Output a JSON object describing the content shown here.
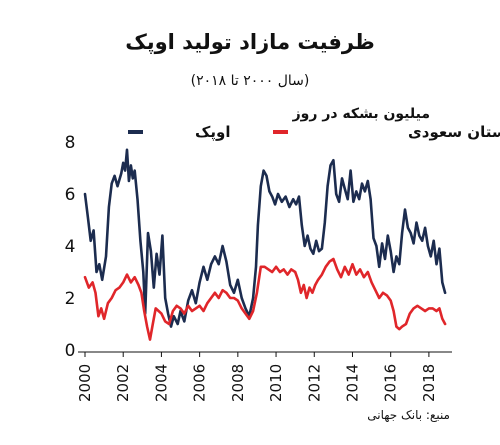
{
  "chart_data": {
    "type": "line",
    "title": "ظرفیت مازاد تولید اوپک",
    "subtitle": "(سال ۲۰۰۰ تا ۲۰۱۸)",
    "ylabel": "میلیون بشکه در روز",
    "xlabel": "",
    "source": "منبع: بانک جهانی",
    "ylim": [
      0,
      8
    ],
    "xlim": [
      2000,
      2019
    ],
    "yticks": [
      "0",
      "2",
      "4",
      "6",
      "8"
    ],
    "xticks": [
      "2000",
      "2002",
      "2004",
      "2006",
      "2008",
      "2010",
      "2012",
      "2014",
      "2016",
      "2018"
    ],
    "grid": false,
    "legend_placement": "top",
    "series": [
      {
        "name": "اوپک",
        "color": "#1c2c4f",
        "points": [
          [
            2000.0,
            6.0
          ],
          [
            2000.15,
            5.1
          ],
          [
            2000.3,
            4.2
          ],
          [
            2000.45,
            4.6
          ],
          [
            2000.6,
            3.0
          ],
          [
            2000.75,
            3.3
          ],
          [
            2000.9,
            2.7
          ],
          [
            2001.1,
            3.6
          ],
          [
            2001.25,
            5.5
          ],
          [
            2001.4,
            6.4
          ],
          [
            2001.55,
            6.7
          ],
          [
            2001.7,
            6.3
          ],
          [
            2001.9,
            6.8
          ],
          [
            2002.0,
            7.2
          ],
          [
            2002.1,
            6.9
          ],
          [
            2002.2,
            7.7
          ],
          [
            2002.3,
            6.5
          ],
          [
            2002.4,
            7.1
          ],
          [
            2002.5,
            6.6
          ],
          [
            2002.6,
            6.9
          ],
          [
            2002.75,
            5.8
          ],
          [
            2002.9,
            4.2
          ],
          [
            2003.05,
            3.0
          ],
          [
            2003.15,
            1.4
          ],
          [
            2003.3,
            4.5
          ],
          [
            2003.45,
            3.8
          ],
          [
            2003.6,
            2.4
          ],
          [
            2003.75,
            3.7
          ],
          [
            2003.9,
            2.9
          ],
          [
            2004.05,
            4.4
          ],
          [
            2004.2,
            2.0
          ],
          [
            2004.35,
            1.4
          ],
          [
            2004.5,
            0.9
          ],
          [
            2004.65,
            1.3
          ],
          [
            2004.85,
            1.0
          ],
          [
            2005.0,
            1.5
          ],
          [
            2005.2,
            1.1
          ],
          [
            2005.4,
            1.9
          ],
          [
            2005.6,
            2.3
          ],
          [
            2005.8,
            1.8
          ],
          [
            2006.0,
            2.6
          ],
          [
            2006.2,
            3.2
          ],
          [
            2006.4,
            2.7
          ],
          [
            2006.6,
            3.3
          ],
          [
            2006.8,
            3.6
          ],
          [
            2007.0,
            3.3
          ],
          [
            2007.2,
            4.0
          ],
          [
            2007.4,
            3.4
          ],
          [
            2007.6,
            2.5
          ],
          [
            2007.8,
            2.2
          ],
          [
            2008.0,
            2.7
          ],
          [
            2008.2,
            2.0
          ],
          [
            2008.4,
            1.6
          ],
          [
            2008.6,
            1.3
          ],
          [
            2008.8,
            2.0
          ],
          [
            2008.95,
            3.2
          ],
          [
            2009.05,
            4.8
          ],
          [
            2009.2,
            6.3
          ],
          [
            2009.35,
            6.9
          ],
          [
            2009.5,
            6.7
          ],
          [
            2009.65,
            6.1
          ],
          [
            2009.8,
            5.9
          ],
          [
            2009.95,
            5.6
          ],
          [
            2010.1,
            6.0
          ],
          [
            2010.3,
            5.7
          ],
          [
            2010.5,
            5.9
          ],
          [
            2010.7,
            5.5
          ],
          [
            2010.9,
            5.8
          ],
          [
            2011.05,
            5.6
          ],
          [
            2011.2,
            5.9
          ],
          [
            2011.35,
            4.8
          ],
          [
            2011.5,
            4.0
          ],
          [
            2011.65,
            4.4
          ],
          [
            2011.8,
            3.9
          ],
          [
            2011.95,
            3.7
          ],
          [
            2012.1,
            4.2
          ],
          [
            2012.25,
            3.8
          ],
          [
            2012.4,
            3.9
          ],
          [
            2012.55,
            4.9
          ],
          [
            2012.7,
            6.3
          ],
          [
            2012.85,
            7.1
          ],
          [
            2013.0,
            7.3
          ],
          [
            2013.15,
            6.0
          ],
          [
            2013.3,
            5.7
          ],
          [
            2013.45,
            6.6
          ],
          [
            2013.6,
            6.2
          ],
          [
            2013.75,
            5.8
          ],
          [
            2013.9,
            6.9
          ],
          [
            2014.05,
            5.7
          ],
          [
            2014.2,
            6.1
          ],
          [
            2014.35,
            5.8
          ],
          [
            2014.5,
            6.4
          ],
          [
            2014.65,
            6.1
          ],
          [
            2014.8,
            6.5
          ],
          [
            2014.95,
            5.8
          ],
          [
            2015.1,
            4.3
          ],
          [
            2015.25,
            4.0
          ],
          [
            2015.4,
            3.2
          ],
          [
            2015.55,
            4.1
          ],
          [
            2015.7,
            3.5
          ],
          [
            2015.85,
            4.4
          ],
          [
            2016.0,
            3.8
          ],
          [
            2016.15,
            3.0
          ],
          [
            2016.3,
            3.6
          ],
          [
            2016.45,
            3.3
          ],
          [
            2016.6,
            4.5
          ],
          [
            2016.75,
            5.4
          ],
          [
            2016.9,
            4.7
          ],
          [
            2017.05,
            4.5
          ],
          [
            2017.2,
            4.1
          ],
          [
            2017.35,
            4.9
          ],
          [
            2017.5,
            4.4
          ],
          [
            2017.65,
            4.2
          ],
          [
            2017.8,
            4.7
          ],
          [
            2017.95,
            4.0
          ],
          [
            2018.1,
            3.6
          ],
          [
            2018.25,
            4.2
          ],
          [
            2018.4,
            3.3
          ],
          [
            2018.55,
            3.9
          ],
          [
            2018.7,
            2.6
          ],
          [
            2018.85,
            2.2
          ]
        ]
      },
      {
        "name": "عربستان سعودی",
        "color": "#e0262a",
        "points": [
          [
            2000.0,
            2.8
          ],
          [
            2000.2,
            2.4
          ],
          [
            2000.4,
            2.6
          ],
          [
            2000.55,
            2.2
          ],
          [
            2000.7,
            1.3
          ],
          [
            2000.85,
            1.6
          ],
          [
            2001.0,
            1.2
          ],
          [
            2001.2,
            1.8
          ],
          [
            2001.4,
            2.0
          ],
          [
            2001.6,
            2.3
          ],
          [
            2001.8,
            2.4
          ],
          [
            2002.0,
            2.6
          ],
          [
            2002.2,
            2.9
          ],
          [
            2002.4,
            2.6
          ],
          [
            2002.6,
            2.8
          ],
          [
            2002.8,
            2.5
          ],
          [
            2002.95,
            2.2
          ],
          [
            2003.1,
            1.5
          ],
          [
            2003.25,
            0.9
          ],
          [
            2003.4,
            0.4
          ],
          [
            2003.55,
            1.0
          ],
          [
            2003.7,
            1.6
          ],
          [
            2003.85,
            1.5
          ],
          [
            2004.0,
            1.4
          ],
          [
            2004.2,
            1.1
          ],
          [
            2004.4,
            1.0
          ],
          [
            2004.6,
            1.5
          ],
          [
            2004.8,
            1.7
          ],
          [
            2005.0,
            1.6
          ],
          [
            2005.2,
            1.4
          ],
          [
            2005.4,
            1.7
          ],
          [
            2005.6,
            1.5
          ],
          [
            2005.8,
            1.6
          ],
          [
            2006.0,
            1.7
          ],
          [
            2006.2,
            1.5
          ],
          [
            2006.4,
            1.8
          ],
          [
            2006.6,
            2.0
          ],
          [
            2006.8,
            2.2
          ],
          [
            2007.0,
            2.0
          ],
          [
            2007.2,
            2.3
          ],
          [
            2007.4,
            2.2
          ],
          [
            2007.6,
            2.0
          ],
          [
            2007.8,
            2.0
          ],
          [
            2008.0,
            1.9
          ],
          [
            2008.2,
            1.6
          ],
          [
            2008.4,
            1.4
          ],
          [
            2008.6,
            1.2
          ],
          [
            2008.8,
            1.5
          ],
          [
            2009.0,
            2.2
          ],
          [
            2009.2,
            3.2
          ],
          [
            2009.4,
            3.2
          ],
          [
            2009.6,
            3.1
          ],
          [
            2009.8,
            3.0
          ],
          [
            2010.0,
            3.2
          ],
          [
            2010.2,
            3.0
          ],
          [
            2010.4,
            3.1
          ],
          [
            2010.6,
            2.9
          ],
          [
            2010.8,
            3.1
          ],
          [
            2011.0,
            3.0
          ],
          [
            2011.15,
            2.7
          ],
          [
            2011.3,
            2.2
          ],
          [
            2011.45,
            2.5
          ],
          [
            2011.6,
            2.0
          ],
          [
            2011.75,
            2.4
          ],
          [
            2011.9,
            2.2
          ],
          [
            2012.05,
            2.5
          ],
          [
            2012.2,
            2.7
          ],
          [
            2012.4,
            2.9
          ],
          [
            2012.6,
            3.2
          ],
          [
            2012.8,
            3.4
          ],
          [
            2013.0,
            3.5
          ],
          [
            2013.2,
            3.1
          ],
          [
            2013.4,
            2.8
          ],
          [
            2013.6,
            3.2
          ],
          [
            2013.8,
            2.9
          ],
          [
            2014.0,
            3.3
          ],
          [
            2014.2,
            2.9
          ],
          [
            2014.4,
            3.1
          ],
          [
            2014.6,
            2.8
          ],
          [
            2014.8,
            3.0
          ],
          [
            2015.0,
            2.6
          ],
          [
            2015.2,
            2.3
          ],
          [
            2015.4,
            2.0
          ],
          [
            2015.6,
            2.2
          ],
          [
            2015.8,
            2.1
          ],
          [
            2016.0,
            1.9
          ],
          [
            2016.15,
            1.5
          ],
          [
            2016.3,
            0.9
          ],
          [
            2016.45,
            0.8
          ],
          [
            2016.6,
            0.9
          ],
          [
            2016.8,
            1.0
          ],
          [
            2017.0,
            1.4
          ],
          [
            2017.2,
            1.6
          ],
          [
            2017.4,
            1.7
          ],
          [
            2017.6,
            1.6
          ],
          [
            2017.8,
            1.5
          ],
          [
            2018.0,
            1.6
          ],
          [
            2018.2,
            1.6
          ],
          [
            2018.4,
            1.5
          ],
          [
            2018.55,
            1.6
          ],
          [
            2018.7,
            1.2
          ],
          [
            2018.85,
            1.0
          ]
        ]
      }
    ]
  }
}
